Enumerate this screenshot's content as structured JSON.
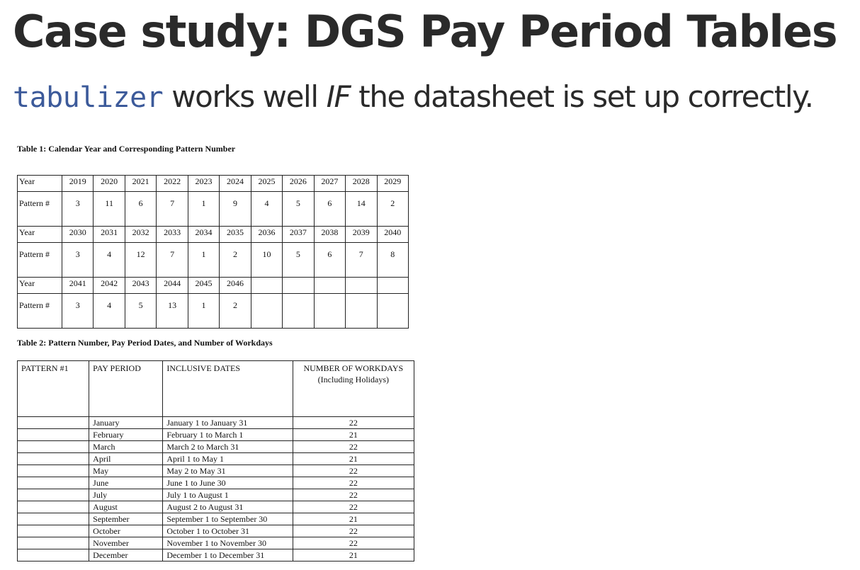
{
  "slide": {
    "title": "Case study: DGS Pay Period Tables",
    "subtitle_code": "tabulizer",
    "subtitle_part1": " works well ",
    "subtitle_em": "IF",
    "subtitle_part2": " the datasheet is set up correctly."
  },
  "table1": {
    "caption": "Table 1: Calendar Year and Corresponding Pattern Number",
    "year_label": "Year",
    "pattern_label": "Pattern #",
    "blocks": [
      {
        "years": [
          "2019",
          "2020",
          "2021",
          "2022",
          "2023",
          "2024",
          "2025",
          "2026",
          "2027",
          "2028",
          "2029"
        ],
        "patterns": [
          "3",
          "11",
          "6",
          "7",
          "1",
          "9",
          "4",
          "5",
          "6",
          "14",
          "2"
        ]
      },
      {
        "years": [
          "2030",
          "2031",
          "2032",
          "2033",
          "2034",
          "2035",
          "2036",
          "2037",
          "2038",
          "2039",
          "2040"
        ],
        "patterns": [
          "3",
          "4",
          "12",
          "7",
          "1",
          "2",
          "10",
          "5",
          "6",
          "7",
          "8"
        ]
      },
      {
        "years": [
          "2041",
          "2042",
          "2043",
          "2044",
          "2045",
          "2046",
          "",
          "",
          "",
          "",
          ""
        ],
        "patterns": [
          "3",
          "4",
          "5",
          "13",
          "1",
          "2",
          "",
          "",
          "",
          "",
          ""
        ]
      }
    ]
  },
  "table2": {
    "caption": "Table 2: Pattern Number, Pay Period Dates, and Number of Workdays",
    "headers": [
      "PATTERN #1",
      "PAY PERIOD",
      "INCLUSIVE DATES",
      "NUMBER OF WORKDAYS (Including Holidays)"
    ],
    "rows": [
      {
        "pattern": "",
        "period": "January",
        "dates": "January 1 to January 31",
        "workdays": "22"
      },
      {
        "pattern": "",
        "period": "February",
        "dates": "February 1 to March 1",
        "workdays": "21"
      },
      {
        "pattern": "",
        "period": "March",
        "dates": "March 2 to March 31",
        "workdays": "22"
      },
      {
        "pattern": "",
        "period": "April",
        "dates": "April 1 to May 1",
        "workdays": "21"
      },
      {
        "pattern": "",
        "period": "May",
        "dates": "May 2 to May 31",
        "workdays": "22"
      },
      {
        "pattern": "",
        "period": "June",
        "dates": "June 1 to June 30",
        "workdays": "22"
      },
      {
        "pattern": "",
        "period": "July",
        "dates": "July 1 to August 1",
        "workdays": "22"
      },
      {
        "pattern": "",
        "period": "August",
        "dates": "August 2 to August 31",
        "workdays": "22"
      },
      {
        "pattern": "",
        "period": "September",
        "dates": "September 1 to September 30",
        "workdays": "21"
      },
      {
        "pattern": "",
        "period": "October",
        "dates": "October 1 to October 31",
        "workdays": "22"
      },
      {
        "pattern": "",
        "period": "November",
        "dates": "November 1 to November 30",
        "workdays": "22"
      },
      {
        "pattern": "",
        "period": "December",
        "dates": "December 1 to December 31",
        "workdays": "21"
      }
    ]
  }
}
